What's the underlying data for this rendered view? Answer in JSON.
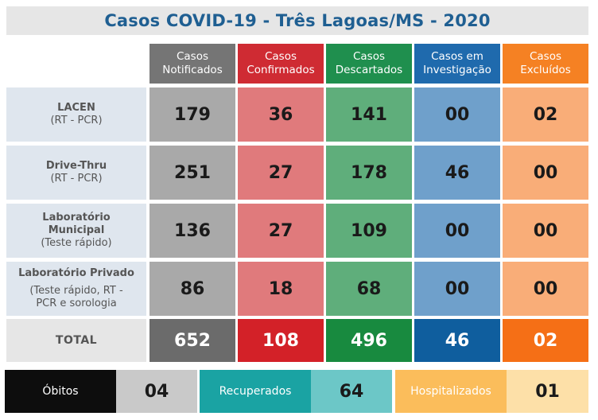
{
  "title": "Casos COVID-19 - Três Lagoas/MS - 2020",
  "headers": [
    {
      "line1": "Casos",
      "line2": "Notificados"
    },
    {
      "line1": "Casos",
      "line2": "Confirmados"
    },
    {
      "line1": "Casos",
      "line2": "Descartados"
    },
    {
      "line1": "Casos em",
      "line2": "Investigação"
    },
    {
      "line1": "Casos",
      "line2": "Excluídos"
    }
  ],
  "rows": [
    {
      "name": "LACEN",
      "name2": "",
      "sub": "(RT - PCR)",
      "sub2": "",
      "values": [
        "179",
        "36",
        "141",
        "00",
        "02"
      ]
    },
    {
      "name": "Drive-Thru",
      "name2": "",
      "sub": "(RT - PCR)",
      "sub2": "",
      "values": [
        "251",
        "27",
        "178",
        "46",
        "00"
      ]
    },
    {
      "name": "Laboratório",
      "name2": "Municipal",
      "sub": "(Teste rápido)",
      "sub2": "",
      "values": [
        "136",
        "27",
        "109",
        "00",
        "00"
      ]
    },
    {
      "name": "Laboratório Privado",
      "name2": "",
      "sub": "(Teste rápido, RT -",
      "sub2": "PCR e sorologia",
      "values": [
        "86",
        "18",
        "68",
        "00",
        "00"
      ]
    }
  ],
  "total": {
    "label": "TOTAL",
    "values": [
      "652",
      "108",
      "496",
      "46",
      "02"
    ]
  },
  "summary": [
    {
      "label": "Óbitos",
      "value": "04"
    },
    {
      "label": "Recuperados",
      "value": "64"
    },
    {
      "label": "Hospitalizados",
      "value": "01"
    }
  ],
  "colors": {
    "header": [
      "#757575",
      "#cf2b33",
      "#1f8f4e",
      "#1f6aad",
      "#f58123"
    ],
    "body": [
      "#a9a9a9",
      "#e07a7c",
      "#5fae7b",
      "#6fa0cb",
      "#f9ad78"
    ],
    "total": [
      "#6b6b6b",
      "#d32128",
      "#188a3f",
      "#0f5e9e",
      "#f56f16"
    ],
    "summary_label": [
      "#0d0d0d",
      "#1aa3a3",
      "#fbbd5b"
    ],
    "summary_value": [
      "#c9c9c9",
      "#6cc7c7",
      "#fde0a8"
    ]
  }
}
